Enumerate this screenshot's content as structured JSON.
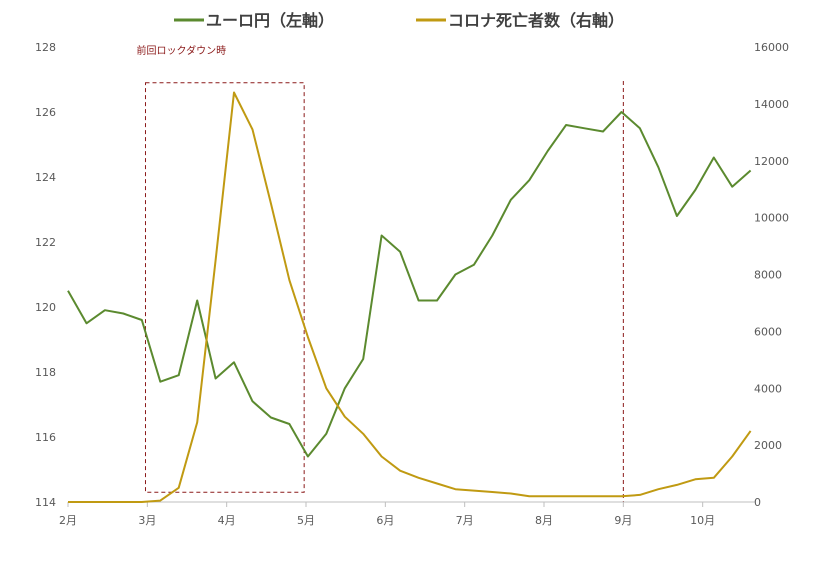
{
  "chart_data": {
    "type": "line",
    "title": "",
    "legend": {
      "placement": "top",
      "entries": [
        "ユーロ円（左軸）",
        "コロナ死亡者数（右軸）"
      ]
    },
    "x": {
      "tick_labels": [
        "2月",
        "3月",
        "4月",
        "5月",
        "6月",
        "7月",
        "8月",
        "9月",
        "10月"
      ],
      "tick_weeks": [
        0,
        4.3,
        8.6,
        12.9,
        17.2,
        21.5,
        25.8,
        30.1,
        34.4
      ]
    },
    "y_left": {
      "label": "",
      "lim": [
        114,
        128
      ],
      "ticks": [
        114,
        116,
        118,
        120,
        122,
        124,
        126,
        128
      ]
    },
    "y_right": {
      "label": "",
      "lim": [
        0,
        16000
      ],
      "ticks": [
        0,
        2000,
        4000,
        6000,
        8000,
        10000,
        12000,
        14000,
        16000
      ]
    },
    "series": [
      {
        "name": "ユーロ円（左軸）",
        "axis": "left",
        "color": "#5b8a2f",
        "weeks": [
          0,
          1,
          2,
          3,
          4,
          5,
          6,
          7,
          8,
          9,
          10,
          11,
          12,
          13,
          14,
          15,
          16,
          17,
          18,
          19,
          20,
          21,
          22,
          23,
          24,
          25,
          26,
          27,
          28,
          29,
          30,
          31,
          32,
          33,
          34,
          35,
          36,
          37
        ],
        "values": [
          120.5,
          119.5,
          119.9,
          119.8,
          119.6,
          117.7,
          117.9,
          120.2,
          117.8,
          118.3,
          117.1,
          116.6,
          116.4,
          115.4,
          116.1,
          117.5,
          118.4,
          122.2,
          121.7,
          120.2,
          120.2,
          121.0,
          121.3,
          122.2,
          123.3,
          123.9,
          124.8,
          125.6,
          125.5,
          125.4,
          126.0,
          125.5,
          124.3,
          122.8,
          123.6,
          124.6,
          123.7,
          124.2
        ]
      },
      {
        "name": "コロナ死亡者数（右軸）",
        "axis": "right",
        "color": "#c09a12",
        "weeks": [
          0,
          1,
          2,
          3,
          4,
          5,
          6,
          7,
          8,
          9,
          10,
          11,
          12,
          13,
          14,
          15,
          16,
          17,
          18,
          19,
          20,
          21,
          22,
          23,
          24,
          25,
          26,
          27,
          28,
          29,
          30,
          31,
          32,
          33,
          34,
          35,
          36,
          37
        ],
        "values": [
          0,
          0,
          0,
          0,
          0,
          50,
          500,
          2800,
          8500,
          14400,
          13100,
          10500,
          7800,
          5800,
          4000,
          3000,
          2400,
          1600,
          1100,
          850,
          650,
          450,
          400,
          350,
          300,
          200,
          200,
          200,
          200,
          200,
          200,
          250,
          450,
          600,
          800,
          850,
          1600,
          2500
        ]
      }
    ],
    "annotations": [
      {
        "text": "前回ロックダウン時",
        "type": "dashed-box",
        "x_weeks": [
          4.2,
          12.8
        ],
        "y_left": [
          114.3,
          126.9
        ],
        "color": "#8b1a1a"
      },
      {
        "text": "",
        "type": "dashed-vline",
        "x_weeks": 30.1,
        "color": "#8b1a1a"
      }
    ]
  }
}
